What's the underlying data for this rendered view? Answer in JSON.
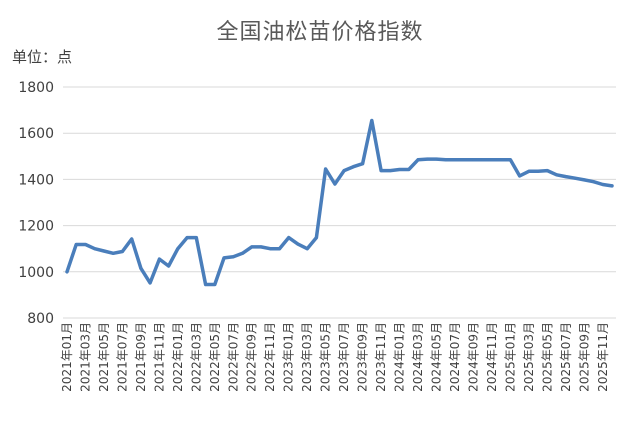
{
  "chart_data": {
    "type": "line",
    "title": "全国油松苗价格指数",
    "unit_label": "单位：点",
    "xlabel": "",
    "ylabel": "",
    "ylim": [
      800,
      1800
    ],
    "yticks": [
      800,
      1000,
      1200,
      1400,
      1600,
      1800
    ],
    "grid": true,
    "legend": "none",
    "line_color": "#4a7ebb",
    "x": [
      "2021年01月",
      "2021年02月",
      "2021年03月",
      "2021年04月",
      "2021年05月",
      "2021年06月",
      "2021年07月",
      "2021年08月",
      "2021年09月",
      "2021年10月",
      "2021年11月",
      "2021年12月",
      "2022年01月",
      "2022年02月",
      "2022年03月",
      "2022年04月",
      "2022年05月",
      "2022年06月",
      "2022年07月",
      "2022年08月",
      "2022年09月",
      "2022年10月",
      "2022年11月",
      "2022年12月",
      "2023年01月",
      "2023年02月",
      "2023年03月",
      "2023年04月",
      "2023年05月",
      "2023年06月",
      "2023年07月",
      "2023年08月",
      "2023年09月",
      "2023年10月",
      "2023年11月",
      "2023年12月",
      "2024年01月",
      "2024年02月",
      "2024年03月",
      "2024年04月",
      "2024年05月",
      "2024年06月",
      "2024年07月",
      "2024年08月",
      "2024年09月",
      "2024年10月",
      "2024年11月",
      "2024年12月",
      "2025年01月",
      "2025年02月",
      "2025年03月",
      "2025年04月",
      "2025年05月",
      "2025年06月",
      "2025年07月",
      "2025年08月",
      "2025年09月",
      "2025年10月",
      "2025年11月",
      "2025年12月"
    ],
    "xtick_labels": [
      "2021年01月",
      "2021年03月",
      "2021年05月",
      "2021年07月",
      "2021年09月",
      "2021年11月",
      "2022年01月",
      "2022年03月",
      "2022年05月",
      "2022年07月",
      "2022年09月",
      "2022年11月",
      "2023年01月",
      "2023年03月",
      "2023年05月",
      "2023年07月",
      "2023年09月",
      "2023年11月",
      "2024年01月",
      "2024年03月",
      "2024年05月",
      "2024年07月",
      "2024年09月",
      "2024年11月",
      "2025年01月",
      "2025年03月",
      "2025年05月",
      "2025年07月",
      "2025年09月",
      "2025年11月"
    ],
    "series": [
      {
        "values": [
          1000,
          1118,
          1118,
          1100,
          1090,
          1080,
          1088,
          1142,
          1015,
          952,
          1055,
          1025,
          1100,
          1148,
          1148,
          945,
          945,
          1060,
          1065,
          1080,
          1108,
          1108,
          1100,
          1100,
          1148,
          1120,
          1100,
          1148,
          1445,
          1380,
          1438,
          1455,
          1468,
          1655,
          1438,
          1438,
          1443,
          1443,
          1485,
          1488,
          1488,
          1485,
          1485,
          1485,
          1485,
          1485,
          1485,
          1485,
          1485,
          1415,
          1435,
          1435,
          1438,
          1420,
          1412,
          1405,
          1398,
          1390,
          1378,
          1372
        ]
      }
    ]
  }
}
